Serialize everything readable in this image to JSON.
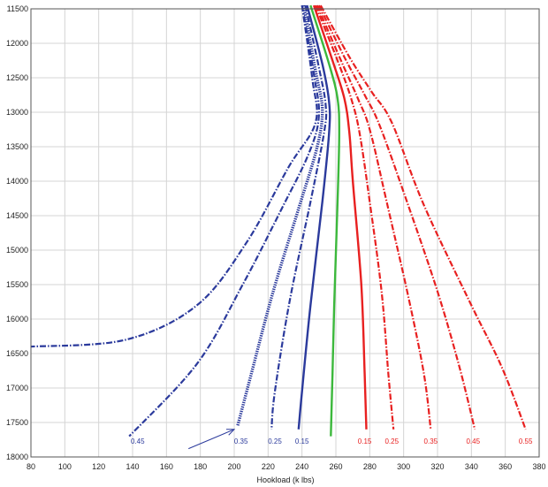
{
  "chart_data": {
    "type": "line",
    "title": "",
    "xlabel": "Hookload (k lbs)",
    "ylabel": "",
    "xlim": [
      80,
      380
    ],
    "ylim": [
      11500,
      18000
    ],
    "y_inverted": true,
    "grid": true,
    "x_ticks": [
      80,
      100,
      120,
      140,
      160,
      180,
      200,
      220,
      240,
      260,
      280,
      300,
      320,
      340,
      360,
      380
    ],
    "y_ticks": [
      11500,
      12000,
      12500,
      13000,
      13500,
      14000,
      14500,
      15000,
      15500,
      16000,
      16500,
      17000,
      17500,
      18000
    ],
    "colors": {
      "slack_off": "#2b3a9c",
      "pick_up": "#e82020",
      "rotating": "#3cb83c"
    },
    "series": [
      {
        "label": "0.45",
        "group": "slack_off",
        "style": "dashed",
        "points": [
          [
            240,
            11450
          ],
          [
            246,
            12500
          ],
          [
            248,
            13150
          ],
          [
            232,
            13800
          ],
          [
            207,
            14900
          ],
          [
            178,
            15800
          ],
          [
            136,
            16300
          ],
          [
            80,
            16400
          ]
        ]
      },
      {
        "label": "0.35",
        "group": "slack_off",
        "style": "dashed",
        "points": [
          [
            240,
            11450
          ],
          [
            247,
            12450
          ],
          [
            250,
            13050
          ],
          [
            244,
            13600
          ],
          [
            228,
            14400
          ],
          [
            205,
            15500
          ],
          [
            178,
            16650
          ],
          [
            138,
            17700
          ]
        ]
      },
      {
        "label": "0.35",
        "group": "slack_off",
        "style": "dense",
        "points": [
          [
            241,
            11450
          ],
          [
            248,
            12400
          ],
          [
            252,
            12950
          ],
          [
            249,
            13500
          ],
          [
            238,
            14400
          ],
          [
            223,
            15600
          ],
          [
            210,
            16800
          ],
          [
            202,
            17550
          ]
        ]
      },
      {
        "label": "0.25",
        "group": "slack_off",
        "style": "dashed",
        "points": [
          [
            242,
            11450
          ],
          [
            250,
            12350
          ],
          [
            254,
            12900
          ],
          [
            253,
            13300
          ],
          [
            245,
            14300
          ],
          [
            233,
            15700
          ],
          [
            224,
            17050
          ],
          [
            222,
            17600
          ]
        ]
      },
      {
        "label": "0.15",
        "group": "slack_off",
        "style": "solid",
        "points": [
          [
            243,
            11450
          ],
          [
            252,
            12300
          ],
          [
            256,
            12850
          ],
          [
            256,
            13300
          ],
          [
            252,
            14300
          ],
          [
            245,
            15800
          ],
          [
            240,
            17050
          ],
          [
            238,
            17600
          ]
        ]
      },
      {
        "label": "",
        "group": "rotating",
        "style": "solid",
        "points": [
          [
            245,
            11450
          ],
          [
            256,
            12300
          ],
          [
            261,
            12800
          ],
          [
            262,
            13300
          ],
          [
            261,
            14300
          ],
          [
            259,
            15800
          ],
          [
            258,
            16800
          ],
          [
            257,
            17700
          ]
        ]
      },
      {
        "label": "0.15",
        "group": "pick_up",
        "style": "solid",
        "points": [
          [
            247,
            11450
          ],
          [
            258,
            12250
          ],
          [
            265,
            12800
          ],
          [
            268,
            13300
          ],
          [
            270,
            14000
          ],
          [
            275,
            15500
          ],
          [
            277,
            16800
          ],
          [
            278,
            17600
          ]
        ]
      },
      {
        "label": "0.25",
        "group": "pick_up",
        "style": "dashed",
        "points": [
          [
            248,
            11450
          ],
          [
            261,
            12250
          ],
          [
            269,
            12800
          ],
          [
            274,
            13300
          ],
          [
            280,
            14300
          ],
          [
            287,
            15600
          ],
          [
            291,
            16800
          ],
          [
            294,
            17600
          ]
        ]
      },
      {
        "label": "0.35",
        "group": "pick_up",
        "style": "dashed",
        "points": [
          [
            249,
            11450
          ],
          [
            263,
            12250
          ],
          [
            273,
            12800
          ],
          [
            280,
            13250
          ],
          [
            290,
            14300
          ],
          [
            303,
            15700
          ],
          [
            312,
            16800
          ],
          [
            316,
            17600
          ]
        ]
      },
      {
        "label": "0.45",
        "group": "pick_up",
        "style": "dashed",
        "points": [
          [
            250,
            11450
          ],
          [
            265,
            12200
          ],
          [
            277,
            12750
          ],
          [
            286,
            13200
          ],
          [
            302,
            14300
          ],
          [
            320,
            15600
          ],
          [
            333,
            16700
          ],
          [
            342,
            17600
          ]
        ]
      },
      {
        "label": "0.55",
        "group": "pick_up",
        "style": "dashed",
        "points": [
          [
            251,
            11450
          ],
          [
            268,
            12200
          ],
          [
            281,
            12700
          ],
          [
            293,
            13150
          ],
          [
            312,
            14350
          ],
          [
            340,
            15800
          ],
          [
            358,
            16700
          ],
          [
            372,
            17600
          ]
        ]
      }
    ],
    "curve_labels": [
      {
        "text": "0.45",
        "group": "slack_off",
        "x": 143,
        "y": 17770
      },
      {
        "text": "0.35",
        "group": "slack_off",
        "x": 204,
        "y": 17770
      },
      {
        "text": "0.25",
        "group": "slack_off",
        "x": 224,
        "y": 17770
      },
      {
        "text": "0.15",
        "group": "slack_off",
        "x": 240,
        "y": 17770
      },
      {
        "text": "0.15",
        "group": "pick_up",
        "x": 277,
        "y": 17770
      },
      {
        "text": "0.25",
        "group": "pick_up",
        "x": 293,
        "y": 17770
      },
      {
        "text": "0.35",
        "group": "pick_up",
        "x": 316,
        "y": 17770
      },
      {
        "text": "0.45",
        "group": "pick_up",
        "x": 341,
        "y": 17770
      },
      {
        "text": "0.55",
        "group": "pick_up",
        "x": 372,
        "y": 17770
      }
    ],
    "annotation_arrow": {
      "from": [
        173,
        17880
      ],
      "to": [
        200,
        17600
      ],
      "color": "#2b3a9c"
    }
  }
}
